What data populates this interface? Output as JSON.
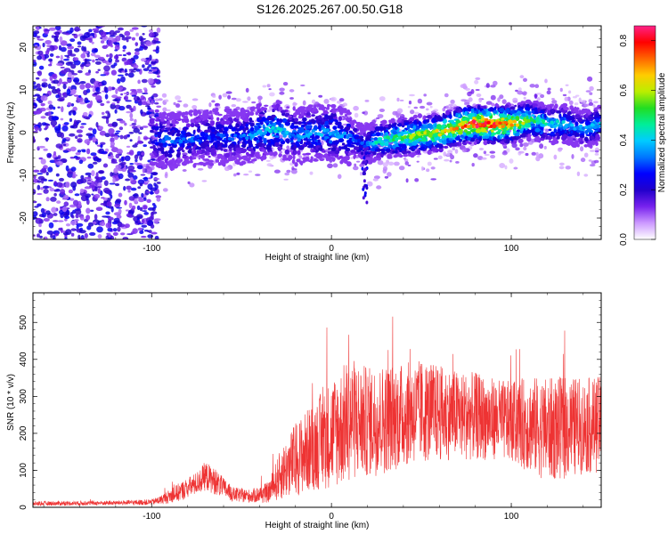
{
  "title": "S126.2025.267.00.50.G18",
  "chart_data": [
    {
      "type": "heatmap",
      "xlabel": "Height of straight line (km)",
      "ylabel": "Frequency (Hz)",
      "xlim": [
        -166,
        150
      ],
      "ylim": [
        -25,
        25
      ],
      "xticks": [
        "-100",
        "0",
        "100"
      ],
      "yticks": [
        "20",
        "10",
        "0",
        "-10",
        "-20"
      ],
      "colorbar": {
        "label": "Normalized spectral amplitude",
        "range": [
          0,
          0.86
        ],
        "ticks": [
          "0.0",
          "0.2",
          "0.4",
          "0.6",
          "0.8"
        ],
        "colors": [
          "#ffffff",
          "#cc99ff",
          "#7722ee",
          "#2200cc",
          "#0000ff",
          "#0077ff",
          "#00ccff",
          "#00ee99",
          "#22dd22",
          "#bbee00",
          "#ffcc00",
          "#ff6600",
          "#ff0000",
          "#ff2288"
        ]
      },
      "ridge": {
        "x": [
          -100,
          -90,
          -70,
          -50,
          -40,
          -30,
          -20,
          -10,
          0,
          10,
          18,
          25,
          40,
          60,
          75,
          90,
          100,
          110,
          120,
          130,
          140,
          150
        ],
        "freq": [
          -1,
          -2,
          -1,
          -1,
          0,
          1,
          -1,
          0,
          0,
          -1,
          -3,
          -2,
          -1,
          0,
          2,
          2,
          2,
          3,
          2,
          2,
          1,
          2
        ],
        "amplitude": [
          0.3,
          0.35,
          0.3,
          0.32,
          0.4,
          0.45,
          0.35,
          0.38,
          0.4,
          0.35,
          0.3,
          0.45,
          0.55,
          0.65,
          0.8,
          0.85,
          0.7,
          0.55,
          0.45,
          0.4,
          0.38,
          0.4
        ]
      },
      "noise_region_below_km": -100
    },
    {
      "type": "line",
      "xlabel": "Height of straight line (km)",
      "ylabel": "SNR (10 * v/v)",
      "xlim": [
        -166,
        150
      ],
      "ylim": [
        0,
        580
      ],
      "xticks": [
        "-100",
        "0",
        "100"
      ],
      "yticks": [
        "0",
        "100",
        "200",
        "300",
        "400",
        "500"
      ],
      "series": [
        {
          "name": "SNR",
          "color": "#ee3333",
          "envelope_x": [
            -166,
            -120,
            -100,
            -95,
            -85,
            -75,
            -70,
            -65,
            -55,
            -45,
            -35,
            -28,
            -20,
            -10,
            0,
            5,
            10,
            20,
            30,
            40,
            50,
            60,
            70,
            80,
            90,
            100,
            110,
            120,
            130,
            140,
            150
          ],
          "envelope_mean": [
            10,
            12,
            14,
            20,
            40,
            65,
            85,
            70,
            35,
            30,
            40,
            90,
            130,
            165,
            200,
            215,
            240,
            230,
            240,
            250,
            260,
            255,
            250,
            245,
            240,
            230,
            225,
            210,
            215,
            220,
            225
          ],
          "envelope_spread": [
            6,
            6,
            8,
            12,
            25,
            30,
            40,
            35,
            20,
            18,
            28,
            70,
            100,
            120,
            150,
            160,
            170,
            150,
            150,
            140,
            140,
            130,
            120,
            120,
            110,
            110,
            130,
            140,
            140,
            130,
            130
          ]
        }
      ]
    }
  ]
}
